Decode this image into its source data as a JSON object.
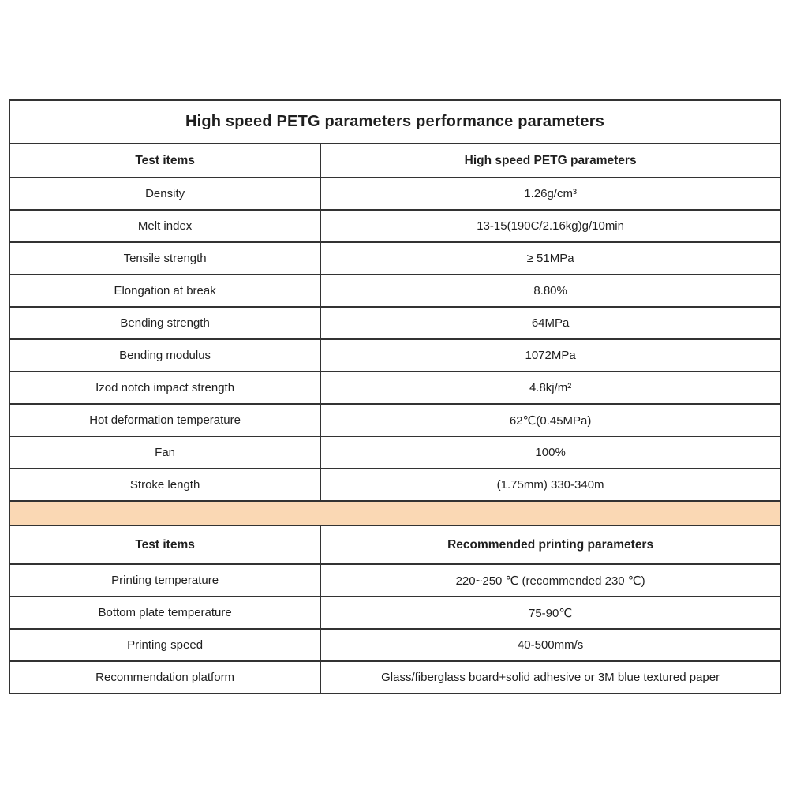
{
  "page": {
    "background_color": "#ffffff",
    "text_color": "#1f1f1f",
    "border_color": "#333333",
    "divider_band_color": "#FAD8B4"
  },
  "table": {
    "title": "High speed PETG parameters performance parameters",
    "section1": {
      "headers": [
        "Test items",
        "High speed PETG parameters"
      ],
      "rows": [
        {
          "item": "Density",
          "value": "1.26g/cm³"
        },
        {
          "item": "Melt index",
          "value": "13-15(190C/2.16kg)g/10min"
        },
        {
          "item": "Tensile strength",
          "value": "≥ 51MPa"
        },
        {
          "item": "Elongation at break",
          "value": "8.80%"
        },
        {
          "item": "Bending strength",
          "value": "64MPa"
        },
        {
          "item": "Bending modulus",
          "value": "1072MPa"
        },
        {
          "item": "Izod notch impact strength",
          "value": "4.8kj/m²"
        },
        {
          "item": "Hot deformation temperature",
          "value": "62℃(0.45MPa)"
        },
        {
          "item": "Fan",
          "value": "100%"
        },
        {
          "item": "Stroke length",
          "value": "(1.75mm) 330-340m"
        }
      ]
    },
    "section2": {
      "headers": [
        "Test items",
        "Recommended printing parameters"
      ],
      "rows": [
        {
          "item": "Printing temperature",
          "value": "220~250 ℃ (recommended 230 ℃)"
        },
        {
          "item": "Bottom plate temperature",
          "value": "75-90℃"
        },
        {
          "item": "Printing speed",
          "value": "40-500mm/s"
        },
        {
          "item": "Recommendation platform",
          "value": "Glass/fiberglass board+solid adhesive or 3M blue textured paper"
        }
      ]
    }
  }
}
